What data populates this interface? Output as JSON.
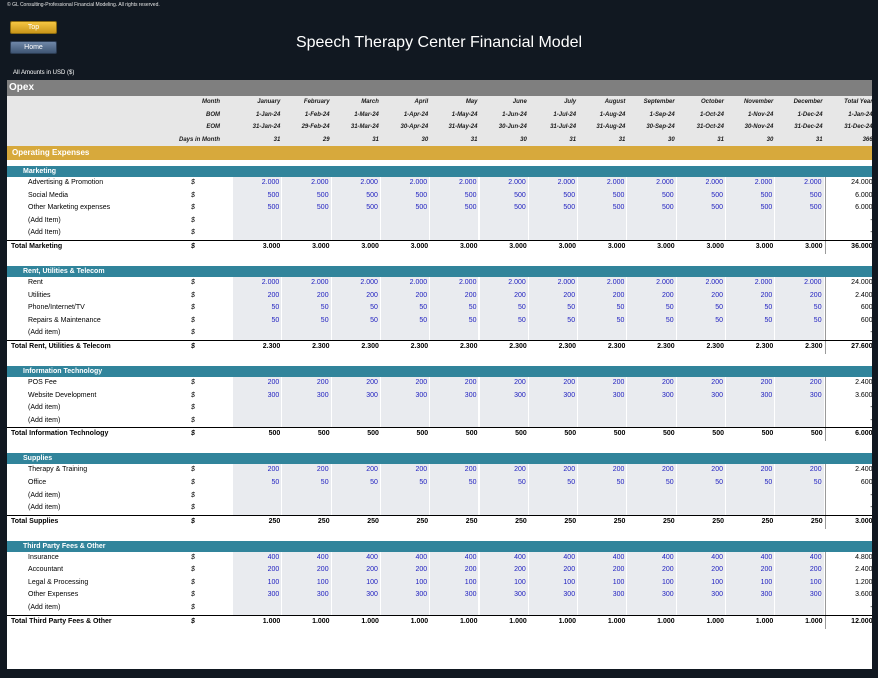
{
  "copyright": "© GL Consulting-Professional Financial Modeling. All rights reserved.",
  "nav": {
    "top": "Top",
    "home": "Home"
  },
  "title": "Speech Therapy Center Financial Model",
  "amounts_label": "All Amounts in  USD ($)",
  "sheet_name": "Opex",
  "header_rows": [
    {
      "label": "Month",
      "values": [
        "January",
        "February",
        "March",
        "April",
        "May",
        "June",
        "July",
        "August",
        "September",
        "October",
        "November",
        "December",
        "Total Year"
      ]
    },
    {
      "label": "BOM",
      "values": [
        "1-Jan-24",
        "1-Feb-24",
        "1-Mar-24",
        "1-Apr-24",
        "1-May-24",
        "1-Jun-24",
        "1-Jul-24",
        "1-Aug-24",
        "1-Sep-24",
        "1-Oct-24",
        "1-Nov-24",
        "1-Dec-24",
        "1-Jan-24"
      ]
    },
    {
      "label": "EOM",
      "values": [
        "31-Jan-24",
        "29-Feb-24",
        "31-Mar-24",
        "30-Apr-24",
        "31-May-24",
        "30-Jun-24",
        "31-Jul-24",
        "31-Aug-24",
        "30-Sep-24",
        "31-Oct-24",
        "30-Nov-24",
        "31-Dec-24",
        "31-Dec-24"
      ]
    },
    {
      "label": "Days in Month",
      "values": [
        "31",
        "29",
        "31",
        "30",
        "31",
        "30",
        "31",
        "31",
        "30",
        "31",
        "30",
        "31",
        "366"
      ]
    }
  ],
  "section_title": "Operating Expenses",
  "categories": [
    {
      "name": "Marketing",
      "items": [
        {
          "label": "Advertising & Promotion",
          "values": [
            "2.000",
            "2.000",
            "2.000",
            "2.000",
            "2.000",
            "2.000",
            "2.000",
            "2.000",
            "2.000",
            "2.000",
            "2.000",
            "2.000"
          ],
          "total": "24.000"
        },
        {
          "label": "Social Media",
          "values": [
            "500",
            "500",
            "500",
            "500",
            "500",
            "500",
            "500",
            "500",
            "500",
            "500",
            "500",
            "500"
          ],
          "total": "6.000"
        },
        {
          "label": "Other Marketing expenses",
          "values": [
            "500",
            "500",
            "500",
            "500",
            "500",
            "500",
            "500",
            "500",
            "500",
            "500",
            "500",
            "500"
          ],
          "total": "6.000"
        },
        {
          "label": "(Add Item)",
          "values": [],
          "total": "-"
        },
        {
          "label": "(Add Item)",
          "values": [],
          "total": "-"
        }
      ],
      "total_label": "Total Marketing",
      "total_values": [
        "3.000",
        "3.000",
        "3.000",
        "3.000",
        "3.000",
        "3.000",
        "3.000",
        "3.000",
        "3.000",
        "3.000",
        "3.000",
        "3.000"
      ],
      "total_year": "36.000"
    },
    {
      "name": "Rent, Utilities & Telecom",
      "items": [
        {
          "label": "Rent",
          "values": [
            "2.000",
            "2.000",
            "2.000",
            "2.000",
            "2.000",
            "2.000",
            "2.000",
            "2.000",
            "2.000",
            "2.000",
            "2.000",
            "2.000"
          ],
          "total": "24.000"
        },
        {
          "label": "Utilities",
          "values": [
            "200",
            "200",
            "200",
            "200",
            "200",
            "200",
            "200",
            "200",
            "200",
            "200",
            "200",
            "200"
          ],
          "total": "2.400"
        },
        {
          "label": "Phone/Internet/TV",
          "values": [
            "50",
            "50",
            "50",
            "50",
            "50",
            "50",
            "50",
            "50",
            "50",
            "50",
            "50",
            "50"
          ],
          "total": "600"
        },
        {
          "label": "Repairs & Maintenance",
          "values": [
            "50",
            "50",
            "50",
            "50",
            "50",
            "50",
            "50",
            "50",
            "50",
            "50",
            "50",
            "50"
          ],
          "total": "600"
        },
        {
          "label": "(Add item)",
          "values": [],
          "total": "-"
        }
      ],
      "total_label": "Total Rent, Utilities & Telecom",
      "total_values": [
        "2.300",
        "2.300",
        "2.300",
        "2.300",
        "2.300",
        "2.300",
        "2.300",
        "2.300",
        "2.300",
        "2.300",
        "2.300",
        "2.300"
      ],
      "total_year": "27.600"
    },
    {
      "name": "Information Technology",
      "items": [
        {
          "label": "POS Fee",
          "values": [
            "200",
            "200",
            "200",
            "200",
            "200",
            "200",
            "200",
            "200",
            "200",
            "200",
            "200",
            "200"
          ],
          "total": "2.400"
        },
        {
          "label": "Website Development",
          "values": [
            "300",
            "300",
            "300",
            "300",
            "300",
            "300",
            "300",
            "300",
            "300",
            "300",
            "300",
            "300"
          ],
          "total": "3.600"
        },
        {
          "label": "(Add item)",
          "values": [],
          "total": "-"
        },
        {
          "label": "(Add item)",
          "values": [],
          "total": "-"
        }
      ],
      "total_label": "Total Information Technology",
      "total_values": [
        "500",
        "500",
        "500",
        "500",
        "500",
        "500",
        "500",
        "500",
        "500",
        "500",
        "500",
        "500"
      ],
      "total_year": "6.000"
    },
    {
      "name": "Supplies",
      "items": [
        {
          "label": "Therapy & Training",
          "values": [
            "200",
            "200",
            "200",
            "200",
            "200",
            "200",
            "200",
            "200",
            "200",
            "200",
            "200",
            "200"
          ],
          "total": "2.400"
        },
        {
          "label": "Office",
          "values": [
            "50",
            "50",
            "50",
            "50",
            "50",
            "50",
            "50",
            "50",
            "50",
            "50",
            "50",
            "50"
          ],
          "total": "600"
        },
        {
          "label": "(Add item)",
          "values": [],
          "total": "-"
        },
        {
          "label": "(Add item)",
          "values": [],
          "total": "-"
        }
      ],
      "total_label": "Total Supplies",
      "total_values": [
        "250",
        "250",
        "250",
        "250",
        "250",
        "250",
        "250",
        "250",
        "250",
        "250",
        "250",
        "250"
      ],
      "total_year": "3.000"
    },
    {
      "name": "Third Party Fees & Other",
      "items": [
        {
          "label": "Insurance",
          "values": [
            "400",
            "400",
            "400",
            "400",
            "400",
            "400",
            "400",
            "400",
            "400",
            "400",
            "400",
            "400"
          ],
          "total": "4.800"
        },
        {
          "label": "Accountant",
          "values": [
            "200",
            "200",
            "200",
            "200",
            "200",
            "200",
            "200",
            "200",
            "200",
            "200",
            "200",
            "200"
          ],
          "total": "2.400"
        },
        {
          "label": "Legal & Processing",
          "values": [
            "100",
            "100",
            "100",
            "100",
            "100",
            "100",
            "100",
            "100",
            "100",
            "100",
            "100",
            "100"
          ],
          "total": "1.200"
        },
        {
          "label": "Other Expenses",
          "values": [
            "300",
            "300",
            "300",
            "300",
            "300",
            "300",
            "300",
            "300",
            "300",
            "300",
            "300",
            "300"
          ],
          "total": "3.600"
        },
        {
          "label": "(Add item)",
          "values": [],
          "total": "-"
        }
      ],
      "total_label": "Total Third Party Fees & Other",
      "total_values": [
        "1.000",
        "1.000",
        "1.000",
        "1.000",
        "1.000",
        "1.000",
        "1.000",
        "1.000",
        "1.000",
        "1.000",
        "1.000",
        "1.000"
      ],
      "total_year": "12.000"
    }
  ],
  "currency_symbol": "$",
  "colors": {
    "background": "#111821",
    "header_gray": "#7f7f7f",
    "section_gold": "#d7a93c",
    "category_teal": "#31849b",
    "input_blue": "#2020c0"
  }
}
